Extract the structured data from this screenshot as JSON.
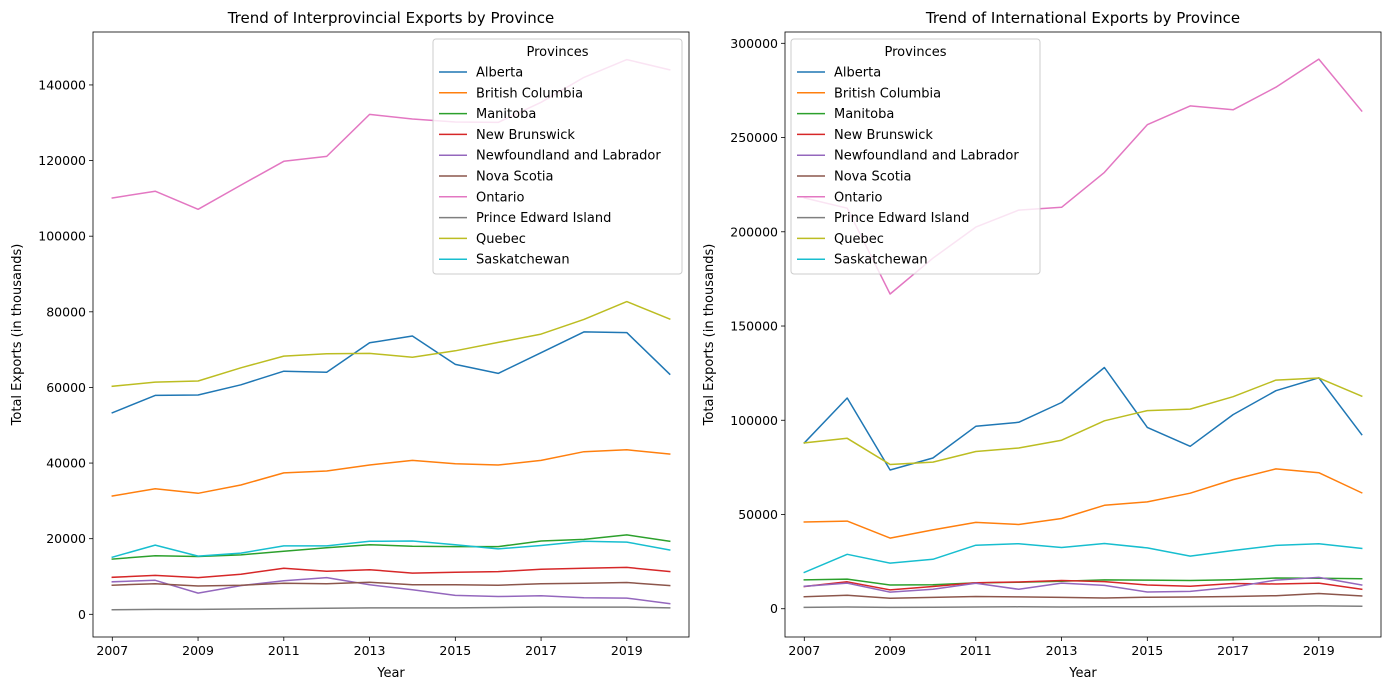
{
  "chart_data": [
    {
      "type": "line",
      "title": "Trend of Interprovincial Exports by Province",
      "xlabel": "Year",
      "ylabel": "Total Exports (in thousands)",
      "legend_title": "Provinces",
      "legend_position": "top-right",
      "grid": false,
      "xlim": [
        2006.55,
        2020.45
      ],
      "ylim": [
        -6000,
        154000
      ],
      "xticks": [
        2007,
        2009,
        2011,
        2013,
        2015,
        2017,
        2019
      ],
      "yticks": [
        0,
        20000,
        40000,
        60000,
        80000,
        100000,
        120000,
        140000
      ],
      "x": [
        2007,
        2008,
        2009,
        2010,
        2011,
        2012,
        2013,
        2014,
        2015,
        2016,
        2017,
        2018,
        2019,
        2020
      ],
      "series": [
        {
          "name": "Alberta",
          "color": "#1f77b4",
          "values": [
            53300,
            57900,
            58000,
            60700,
            64300,
            64000,
            71800,
            73600,
            66100,
            63700,
            69200,
            74700,
            74500,
            63500
          ]
        },
        {
          "name": "British Columbia",
          "color": "#ff7f0e",
          "values": [
            31300,
            33200,
            32000,
            34200,
            37400,
            37900,
            39500,
            40700,
            39800,
            39500,
            40700,
            43000,
            43500,
            42400
          ]
        },
        {
          "name": "Manitoba",
          "color": "#2ca02c",
          "values": [
            14600,
            15500,
            15300,
            15700,
            16700,
            17600,
            18400,
            18000,
            17900,
            17900,
            19400,
            19800,
            21000,
            19300
          ]
        },
        {
          "name": "New Brunswick",
          "color": "#d62728",
          "values": [
            9800,
            10300,
            9700,
            10600,
            12200,
            11400,
            11800,
            10900,
            11100,
            11300,
            11900,
            12200,
            12400,
            11300
          ]
        },
        {
          "name": "Newfoundland and Labrador",
          "color": "#9467bd",
          "values": [
            8600,
            9000,
            5600,
            7600,
            8900,
            9700,
            7800,
            6500,
            5000,
            4700,
            4900,
            4400,
            4300,
            2800
          ]
        },
        {
          "name": "Nova Scotia",
          "color": "#8c564b",
          "values": [
            7700,
            8100,
            7500,
            7700,
            8200,
            8100,
            8500,
            7800,
            7800,
            7700,
            8100,
            8200,
            8400,
            7600
          ]
        },
        {
          "name": "Ontario",
          "color": "#e377c2",
          "values": [
            110100,
            111900,
            107100,
            113500,
            119800,
            121100,
            132200,
            131000,
            130200,
            130100,
            135400,
            142000,
            146700,
            144000
          ]
        },
        {
          "name": "Prince Edward Island",
          "color": "#7f7f7f",
          "values": [
            1200,
            1300,
            1300,
            1400,
            1500,
            1600,
            1700,
            1700,
            1700,
            1800,
            1900,
            1900,
            1900,
            1700
          ]
        },
        {
          "name": "Quebec",
          "color": "#bcbd22",
          "values": [
            60300,
            61400,
            61700,
            65200,
            68300,
            68900,
            69000,
            68000,
            69700,
            71900,
            74100,
            78000,
            82700,
            78100
          ]
        },
        {
          "name": "Saskatchewan",
          "color": "#17becf",
          "values": [
            15100,
            18300,
            15400,
            16200,
            18100,
            18100,
            19300,
            19400,
            18400,
            17300,
            18200,
            19300,
            19100,
            17000
          ]
        }
      ]
    },
    {
      "type": "line",
      "title": "Trend of International Exports by Province",
      "xlabel": "Year",
      "ylabel": "Total Exports (in thousands)",
      "legend_title": "Provinces",
      "legend_position": "top-left",
      "grid": false,
      "xlim": [
        2006.55,
        2020.45
      ],
      "ylim": [
        -15000,
        306000
      ],
      "xticks": [
        2007,
        2009,
        2011,
        2013,
        2015,
        2017,
        2019
      ],
      "yticks": [
        0,
        50000,
        100000,
        150000,
        200000,
        250000,
        300000
      ],
      "x": [
        2007,
        2008,
        2009,
        2010,
        2011,
        2012,
        2013,
        2014,
        2015,
        2016,
        2017,
        2018,
        2019,
        2020
      ],
      "series": [
        {
          "name": "Alberta",
          "color": "#1f77b4",
          "values": [
            88000,
            111800,
            73600,
            80000,
            96800,
            98900,
            109400,
            128000,
            96200,
            86200,
            103000,
            115700,
            122500,
            92400
          ]
        },
        {
          "name": "British Columbia",
          "color": "#ff7f0e",
          "values": [
            46000,
            46500,
            37500,
            41800,
            45800,
            44700,
            47900,
            54900,
            56700,
            61300,
            68500,
            74200,
            72200,
            61500
          ]
        },
        {
          "name": "Manitoba",
          "color": "#2ca02c",
          "values": [
            15300,
            15700,
            12600,
            12700,
            13700,
            14100,
            14600,
            15300,
            15200,
            15000,
            15400,
            16300,
            16200,
            15900
          ]
        },
        {
          "name": "New Brunswick",
          "color": "#d62728",
          "values": [
            11800,
            14300,
            10000,
            11800,
            13800,
            14200,
            15000,
            14400,
            12600,
            11900,
            13400,
            13100,
            13600,
            10300
          ]
        },
        {
          "name": "Newfoundland and Labrador",
          "color": "#9467bd",
          "values": [
            11900,
            13600,
            8800,
            10300,
            13500,
            10300,
            13600,
            12400,
            8900,
            9200,
            11500,
            15200,
            16600,
            12600
          ]
        },
        {
          "name": "Nova Scotia",
          "color": "#8c564b",
          "values": [
            6400,
            7100,
            5600,
            6000,
            6500,
            6300,
            6000,
            5700,
            6100,
            6200,
            6500,
            6900,
            8100,
            6800
          ]
        },
        {
          "name": "Ontario",
          "color": "#e377c2",
          "values": [
            218000,
            212500,
            167000,
            186000,
            202500,
            211500,
            213000,
            231500,
            256800,
            266800,
            264700,
            276700,
            291600,
            264100
          ]
        },
        {
          "name": "Prince Edward Island",
          "color": "#7f7f7f",
          "values": [
            700,
            900,
            700,
            800,
            900,
            1000,
            900,
            1000,
            1100,
            1200,
            1300,
            1400,
            1500,
            1300
          ]
        },
        {
          "name": "Quebec",
          "color": "#bcbd22",
          "values": [
            88000,
            90400,
            76500,
            77800,
            83400,
            85300,
            89400,
            99700,
            105100,
            105900,
            112500,
            121300,
            122400,
            112800
          ]
        },
        {
          "name": "Saskatchewan",
          "color": "#17becf",
          "values": [
            19300,
            28900,
            24200,
            26200,
            33700,
            34500,
            32500,
            34600,
            32300,
            27900,
            30900,
            33600,
            34500,
            32000
          ]
        }
      ]
    }
  ]
}
